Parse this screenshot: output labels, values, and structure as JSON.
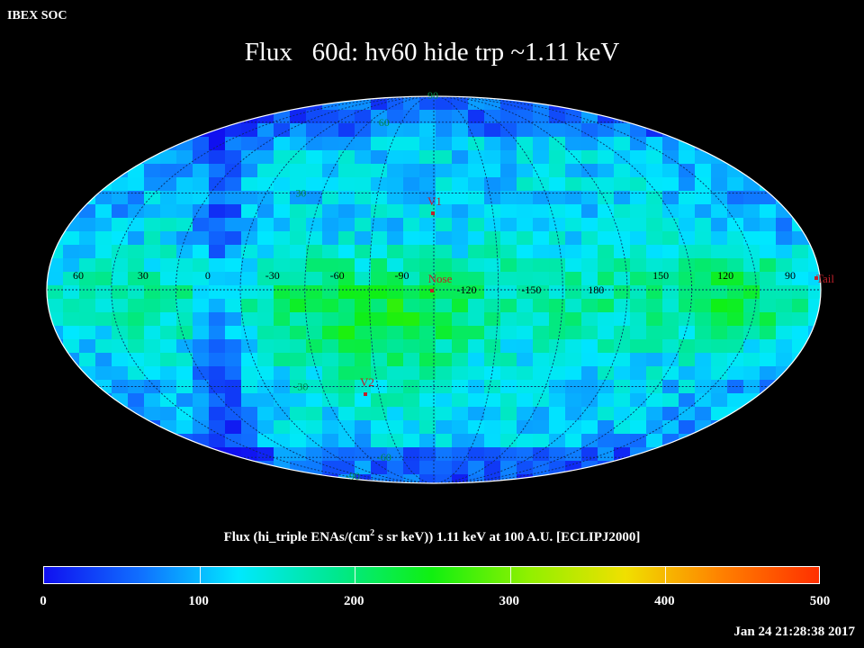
{
  "header": {
    "corner_label": "IBEX SOC",
    "title": "Flux   60d: hv60 hide trp ~1.11 keV"
  },
  "colorbar": {
    "caption_pre": "Flux (hi_triple ENAs/(cm",
    "caption_sup": "2",
    "caption_post": " s sr keV))  1.11 keV at 100 A.U. [ECLIPJ2000]",
    "tick_labels": [
      "0",
      "100",
      "200",
      "300",
      "400",
      "500"
    ],
    "stops": [
      "#1010f0",
      "#1070ff",
      "#00e8ff",
      "#00e890",
      "#10f010",
      "#90f000",
      "#f0e000",
      "#ff8000",
      "#ff3000"
    ]
  },
  "footer": {
    "timestamp": "Jan 24 21:28:38 2017"
  },
  "chart_data": {
    "type": "heatmap",
    "projection": "Mollweide (all-sky)",
    "title": "Flux   60d: hv60 hide trp ~1.11 keV",
    "value_range": [
      0,
      500
    ],
    "gridlines": true,
    "meridian_labels": [
      "60",
      "30",
      "0",
      "-30",
      "-60",
      "-90",
      "-120",
      "-150",
      "180",
      "150",
      "120",
      "90"
    ],
    "parallel_labels": [
      "90",
      "60",
      "30",
      "-30",
      "-60",
      "-90"
    ],
    "markers": [
      {
        "label": "V1",
        "lon": -105,
        "lat": 35
      },
      {
        "label": "Nose",
        "lon": -105,
        "lat": 5
      },
      {
        "label": "Tail",
        "lon": 75,
        "lat": -5
      },
      {
        "label": "V2",
        "lon": -75,
        "lat": -32
      }
    ],
    "flux_bands": [
      {
        "region": "nose ribbon arc, south of nose",
        "flux": 240
      },
      {
        "region": "nose region",
        "flux": 200
      },
      {
        "region": "tail lobe",
        "flux": 190
      },
      {
        "region": "mid latitudes",
        "flux": 140
      },
      {
        "region": "high latitudes / limb",
        "flux": 80
      },
      {
        "region": "low-flux meridian near 0",
        "flux": 40
      }
    ]
  }
}
